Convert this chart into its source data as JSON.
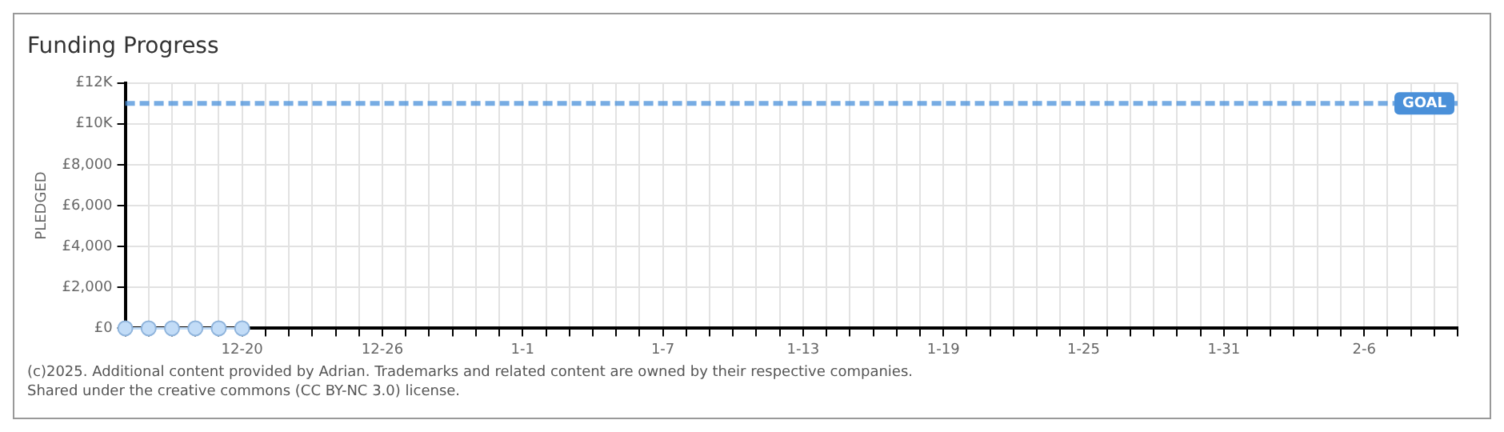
{
  "chart_data": {
    "type": "line",
    "title": "Funding Progress",
    "ylabel": "PLEDGED",
    "x": [
      "2024-12-15",
      "2024-12-16",
      "2024-12-17",
      "2024-12-18",
      "2024-12-19",
      "2024-12-20"
    ],
    "series": [
      {
        "color": "#c2dcf7",
        "values": [
          0,
          0,
          0,
          0,
          0,
          0
        ]
      }
    ],
    "marker": "circle",
    "line_style": "solid",
    "grid": true,
    "legend": false,
    "xlim": [
      "2024-12-15",
      "2025-02-10"
    ],
    "xticks": [
      {
        "value": "2024-12-15",
        "label": null
      },
      {
        "value": "2024-12-16",
        "label": null
      },
      {
        "value": "2024-12-17",
        "label": null
      },
      {
        "value": "2024-12-18",
        "label": null
      },
      {
        "value": "2024-12-19",
        "label": null
      },
      {
        "value": "2024-12-20",
        "label": "12-20"
      },
      {
        "value": "2024-12-21",
        "label": null
      },
      {
        "value": "2024-12-22",
        "label": null
      },
      {
        "value": "2024-12-23",
        "label": null
      },
      {
        "value": "2024-12-24",
        "label": null
      },
      {
        "value": "2024-12-25",
        "label": null
      },
      {
        "value": "2024-12-26",
        "label": "12-26"
      },
      {
        "value": "2024-12-27",
        "label": null
      },
      {
        "value": "2024-12-28",
        "label": null
      },
      {
        "value": "2024-12-29",
        "label": null
      },
      {
        "value": "2024-12-30",
        "label": null
      },
      {
        "value": "2024-12-31",
        "label": null
      },
      {
        "value": "2025-01-01",
        "label": "1-1"
      },
      {
        "value": "2025-01-02",
        "label": null
      },
      {
        "value": "2025-01-03",
        "label": null
      },
      {
        "value": "2025-01-04",
        "label": null
      },
      {
        "value": "2025-01-05",
        "label": null
      },
      {
        "value": "2025-01-06",
        "label": null
      },
      {
        "value": "2025-01-07",
        "label": "1-7"
      },
      {
        "value": "2025-01-08",
        "label": null
      },
      {
        "value": "2025-01-09",
        "label": null
      },
      {
        "value": "2025-01-10",
        "label": null
      },
      {
        "value": "2025-01-11",
        "label": null
      },
      {
        "value": "2025-01-12",
        "label": null
      },
      {
        "value": "2025-01-13",
        "label": "1-13"
      },
      {
        "value": "2025-01-14",
        "label": null
      },
      {
        "value": "2025-01-15",
        "label": null
      },
      {
        "value": "2025-01-16",
        "label": null
      },
      {
        "value": "2025-01-17",
        "label": null
      },
      {
        "value": "2025-01-18",
        "label": null
      },
      {
        "value": "2025-01-19",
        "label": "1-19"
      },
      {
        "value": "2025-01-20",
        "label": null
      },
      {
        "value": "2025-01-21",
        "label": null
      },
      {
        "value": "2025-01-22",
        "label": null
      },
      {
        "value": "2025-01-23",
        "label": null
      },
      {
        "value": "2025-01-24",
        "label": null
      },
      {
        "value": "2025-01-25",
        "label": "1-25"
      },
      {
        "value": "2025-01-26",
        "label": null
      },
      {
        "value": "2025-01-27",
        "label": null
      },
      {
        "value": "2025-01-28",
        "label": null
      },
      {
        "value": "2025-01-29",
        "label": null
      },
      {
        "value": "2025-01-30",
        "label": null
      },
      {
        "value": "2025-01-31",
        "label": "1-31"
      },
      {
        "value": "2025-02-01",
        "label": null
      },
      {
        "value": "2025-02-02",
        "label": null
      },
      {
        "value": "2025-02-03",
        "label": null
      },
      {
        "value": "2025-02-04",
        "label": null
      },
      {
        "value": "2025-02-05",
        "label": null
      },
      {
        "value": "2025-02-06",
        "label": "2-6"
      },
      {
        "value": "2025-02-07",
        "label": null
      },
      {
        "value": "2025-02-08",
        "label": null
      },
      {
        "value": "2025-02-09",
        "label": null
      },
      {
        "value": "2025-02-10",
        "label": null
      }
    ],
    "ylim": [
      0,
      12000
    ],
    "yticks": [
      {
        "value": 0,
        "label": "£0"
      },
      {
        "value": 2000,
        "label": "£2,000"
      },
      {
        "value": 4000,
        "label": "£4,000"
      },
      {
        "value": 6000,
        "label": "£6,000"
      },
      {
        "value": 8000,
        "label": "£8,000"
      },
      {
        "value": 10000,
        "label": "£10K"
      },
      {
        "value": 12000,
        "label": "£12K"
      }
    ],
    "ref_lines": [
      {
        "axis": "y",
        "value": 11000,
        "label": "GOAL",
        "color": "#4a90d9",
        "line_style": "dashed"
      }
    ],
    "annotations": [
      "(c)2025. Additional content provided by Adrian. Trademarks and related content are owned by their respective companies.",
      "Shared under the creative commons (CC BY-NC 3.0) license."
    ]
  }
}
